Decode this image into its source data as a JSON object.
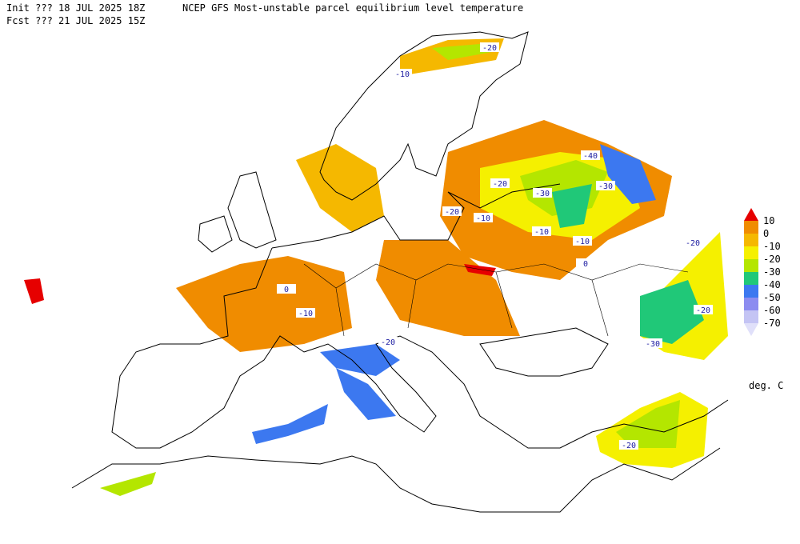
{
  "header": {
    "init": "Init  ??? 18 JUL 2025 18Z",
    "title": "NCEP GFS Most-unstable parcel equilibrium level temperature",
    "forecast": "Fcst ??? 21 JUL 2025 15Z"
  },
  "colorbar": {
    "levels": [
      10,
      0,
      -10,
      -20,
      -30,
      -40,
      -50,
      -60,
      -70
    ],
    "colors": [
      "#e60000",
      "#f08c00",
      "#f5b800",
      "#f5f000",
      "#b4e600",
      "#20c878",
      "#3c78f0",
      "#8c8cf0",
      "#c4c4f4",
      "#e0e0fa"
    ],
    "unit": "deg. C"
  },
  "contour_labels": [
    -20,
    -10,
    -40,
    -20,
    -30,
    -30,
    -20,
    -10,
    -10,
    -10,
    0,
    0,
    -10,
    -20,
    -20,
    -20,
    -30,
    -20
  ]
}
